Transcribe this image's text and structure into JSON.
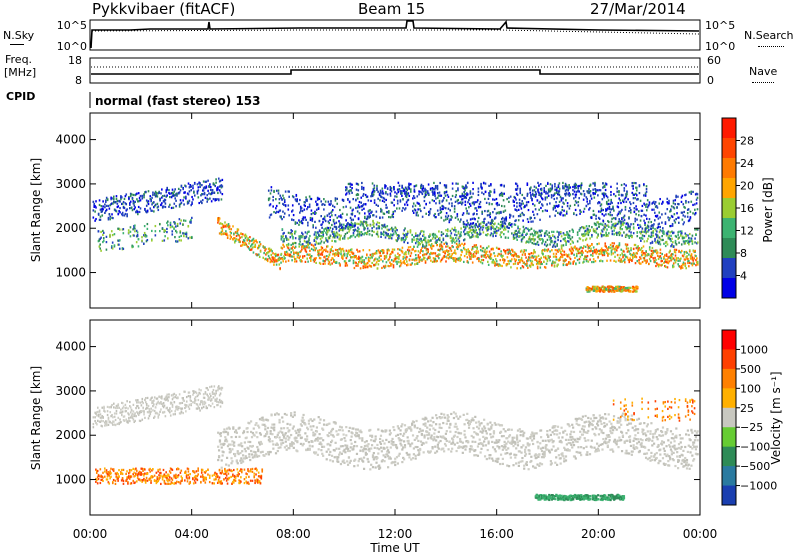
{
  "header": {
    "station": "Pykkvibaer (fitACF)",
    "beam": "Beam 15",
    "date": "27/Mar/2014"
  },
  "left_labels": {
    "nsky": "N.Sky",
    "freq_line1": "Freq.",
    "freq_line2": "[MHz]",
    "cpid": "CPID"
  },
  "right_labels": {
    "nsearch": "N.Search",
    "nave": "Nave"
  },
  "cpid_text": "normal (fast stereo) 153",
  "chart_data": [
    {
      "type": "line",
      "name_panel": "noise",
      "left_ticks": [
        "10^5",
        "10^0"
      ],
      "right_ticks": [
        "10^5",
        "10^0"
      ],
      "series": [
        {
          "label": "N.Sky",
          "style": "solid"
        },
        {
          "label": "N.Search",
          "style": "dotted"
        }
      ]
    },
    {
      "type": "line",
      "name_panel": "freq-nave",
      "left_ticks": [
        "18",
        "8"
      ],
      "right_ticks": [
        "60",
        "0"
      ],
      "freq_segments": [
        {
          "x": [
            0,
            8.0
          ],
          "y": 10.5
        },
        {
          "x": [
            8.0,
            18.0
          ],
          "y": 11.5
        },
        {
          "x": [
            18.0,
            24.0
          ],
          "y": 10.5
        }
      ],
      "nave_y": 15
    },
    {
      "type": "heatmap",
      "name_panel": "power",
      "ylabel": "Slant Range [km]",
      "yticks": [
        1000,
        2000,
        3000,
        4000
      ],
      "ylim": [
        200,
        4600
      ],
      "colorbar": {
        "label": "Power [dB]",
        "ticks": [
          "4",
          "8",
          "12",
          "16",
          "20",
          "24",
          "28"
        ],
        "colors": [
          "#0000e6",
          "#2040c0",
          "#2e8b57",
          "#3cb371",
          "#9acd32",
          "#ffa500",
          "#ff7a00",
          "#ff4500",
          "#ff1a00"
        ]
      }
    },
    {
      "type": "heatmap",
      "name_panel": "velocity",
      "ylabel": "Slant Range [km]",
      "yticks": [
        1000,
        2000,
        3000,
        4000
      ],
      "ylim": [
        200,
        4600
      ],
      "colorbar": {
        "label": "Velocity [m s⁻¹]",
        "ticks": [
          "1000",
          "500",
          "100",
          "25",
          "−25",
          "−100",
          "−500",
          "−1000"
        ],
        "colors": [
          "#1a3fb0",
          "#2a7aa0",
          "#2e8b57",
          "#66cc33",
          "#c8c8c0",
          "#ffb000",
          "#ff8000",
          "#ff4000",
          "#ff0000"
        ]
      }
    }
  ],
  "xaxis": {
    "label": "Time UT",
    "ticks": [
      "00:00",
      "04:00",
      "08:00",
      "12:00",
      "16:00",
      "20:00",
      "00:00"
    ],
    "xlim": [
      0,
      24
    ]
  }
}
